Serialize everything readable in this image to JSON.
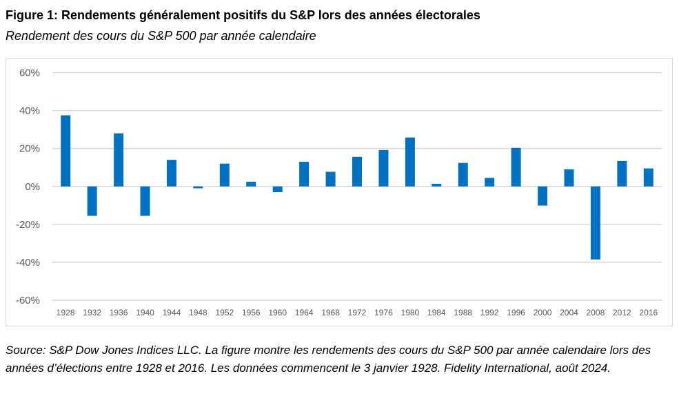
{
  "title": "Figure 1: Rendements généralement positifs du S&P lors des années électorales",
  "subtitle": "Rendement des cours du S&P 500 par année calendaire",
  "source": "Source: S&P Dow Jones Indices LLC. La figure montre les rendements des cours du S&P 500 par année calendaire lors des années d’élections entre 1928 et 2016. Les données commencent le 3 janvier 1928. Fidelity International, août 2024.",
  "chart_data": {
    "type": "bar",
    "title": "",
    "xlabel": "",
    "ylabel": "",
    "ylim": [
      -60,
      60
    ],
    "yticks": [
      60,
      40,
      20,
      0,
      -20,
      -40,
      -60
    ],
    "ytick_labels": [
      "60%",
      "40%",
      "20%",
      "0%",
      "-20%",
      "-40%",
      "-60%"
    ],
    "grid": true,
    "bar_color": "#0070C0",
    "categories": [
      "1928",
      "1932",
      "1936",
      "1940",
      "1944",
      "1948",
      "1952",
      "1956",
      "1960",
      "1964",
      "1968",
      "1972",
      "1976",
      "1980",
      "1984",
      "1988",
      "1992",
      "1996",
      "2000",
      "2004",
      "2008",
      "2012",
      "2016"
    ],
    "values": [
      37.5,
      -15.5,
      28,
      -15.5,
      14,
      -1,
      12,
      2.5,
      -3,
      13,
      7.7,
      15.6,
      19.2,
      25.8,
      1.4,
      12.4,
      4.5,
      20.3,
      -10.1,
      9,
      -38.5,
      13.4,
      9.5
    ]
  }
}
